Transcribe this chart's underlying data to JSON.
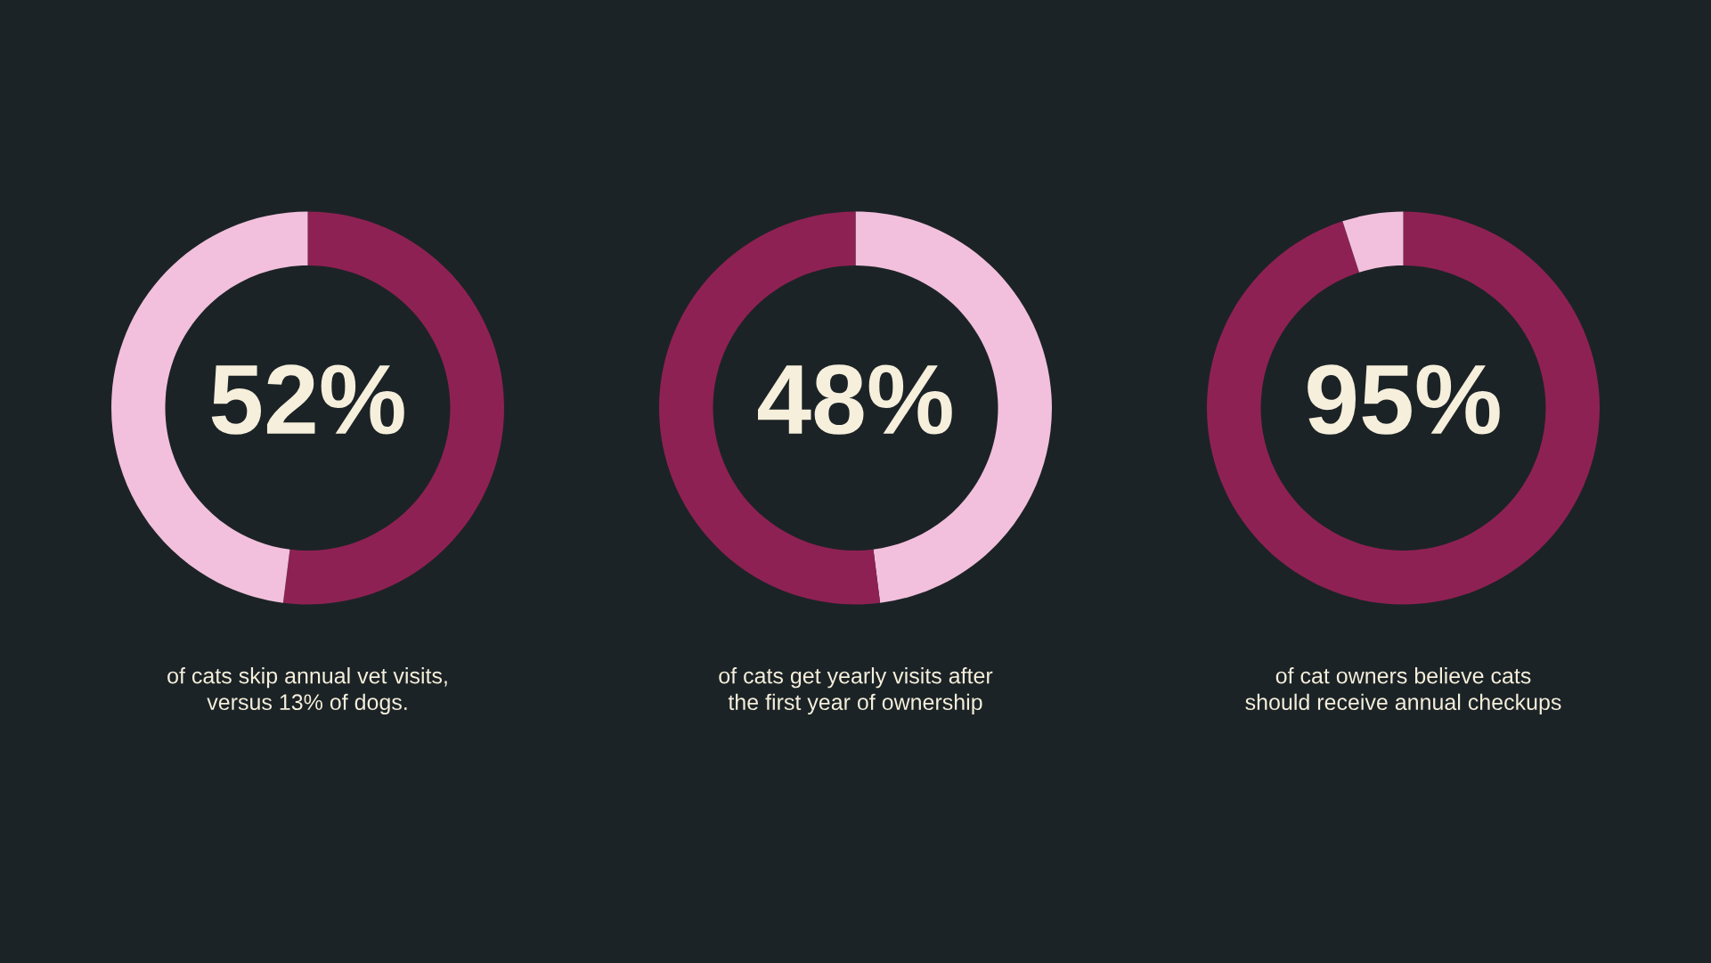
{
  "chart_data": [
    {
      "type": "donut",
      "categories": [
        null,
        null
      ],
      "values": [
        52,
        48
      ],
      "colors": [
        "#8e2153",
        "#f2c0dc"
      ],
      "value_labels": [
        "52%",
        null
      ],
      "annotations": [
        "of cats skip annual vet visits,\nversus 13% of dogs."
      ]
    },
    {
      "type": "donut",
      "categories": [
        null,
        null
      ],
      "values": [
        48,
        52
      ],
      "colors": [
        "#f2c0dc",
        "#8e2153"
      ],
      "value_labels": [
        "48%",
        null
      ],
      "annotations": [
        "of cats get yearly visits after\nthe first year of ownership"
      ]
    },
    {
      "type": "donut",
      "categories": [
        null,
        null
      ],
      "values": [
        95,
        5
      ],
      "colors": [
        "#8e2153",
        "#f2c0dc"
      ],
      "value_labels": [
        "95%",
        null
      ],
      "annotations": [
        "of cat owners believe cats\nshould receive annual checkups"
      ]
    }
  ]
}
